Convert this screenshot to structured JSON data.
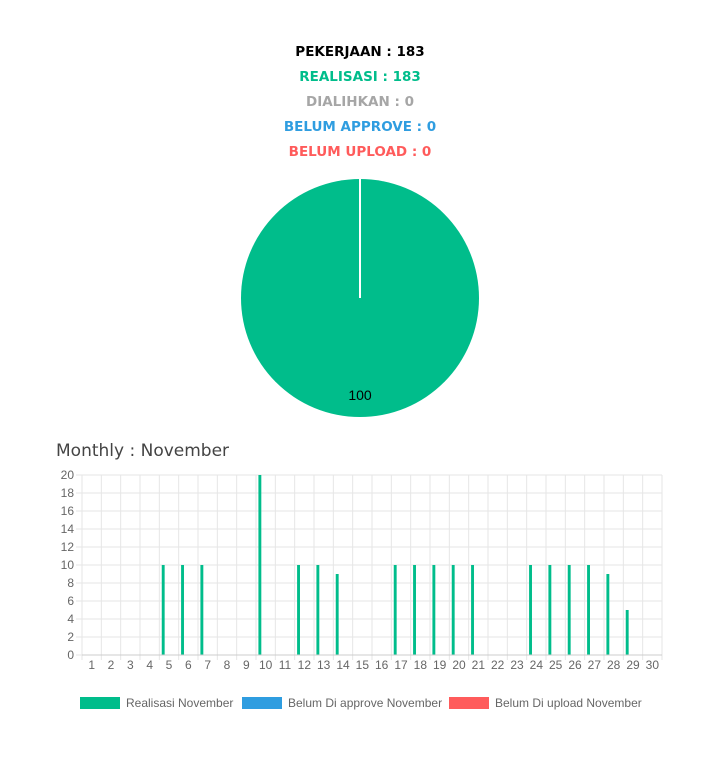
{
  "summary": {
    "pekerjaan": "PEKERJAAN : 183",
    "realisasi": "REALISASI : 183",
    "dialihkan": "DIALIHKAN : 0",
    "belum_approve": "BELUM APPROVE : 0",
    "belum_upload": "BELUM UPLOAD : 0"
  },
  "colors": {
    "pekerjaan": "#000000",
    "realisasi": "#00bd8b",
    "dialihkan": "#a6a6a6",
    "belum_approve": "#2f9de0",
    "belum_upload": "#ff5b5b",
    "grid": "#e6e6e6",
    "tick": "#666666"
  },
  "chart_data": [
    {
      "type": "pie",
      "categories": [
        "Realisasi",
        "Dialihkan",
        "Belum Approve",
        "Belum Upload"
      ],
      "values": [
        100,
        0,
        0,
        0
      ],
      "data_labels": [
        "100"
      ]
    },
    {
      "type": "bar",
      "title": "Monthly : November",
      "categories": [
        "1",
        "2",
        "3",
        "4",
        "5",
        "6",
        "7",
        "8",
        "9",
        "10",
        "11",
        "12",
        "13",
        "14",
        "15",
        "16",
        "17",
        "18",
        "19",
        "20",
        "21",
        "22",
        "23",
        "24",
        "25",
        "26",
        "27",
        "28",
        "29",
        "30"
      ],
      "series": [
        {
          "name": "Realisasi November",
          "color": "#00bd8b",
          "values": [
            0,
            0,
            0,
            0,
            10,
            10,
            10,
            0,
            0,
            20,
            0,
            10,
            10,
            9,
            0,
            0,
            10,
            10,
            10,
            10,
            10,
            0,
            0,
            10,
            10,
            10,
            10,
            9,
            5,
            0
          ]
        },
        {
          "name": "Belum Di approve November",
          "color": "#2f9de0",
          "values": [
            0,
            0,
            0,
            0,
            0,
            0,
            0,
            0,
            0,
            0,
            0,
            0,
            0,
            0,
            0,
            0,
            0,
            0,
            0,
            0,
            0,
            0,
            0,
            0,
            0,
            0,
            0,
            0,
            0,
            0
          ]
        },
        {
          "name": "Belum Di upload November",
          "color": "#ff5b5b",
          "values": [
            0,
            0,
            0,
            0,
            0,
            0,
            0,
            0,
            0,
            0,
            0,
            0,
            0,
            0,
            0,
            0,
            0,
            0,
            0,
            0,
            0,
            0,
            0,
            0,
            0,
            0,
            0,
            0,
            0,
            0
          ]
        }
      ],
      "y_ticks": [
        "0",
        "2",
        "4",
        "6",
        "8",
        "10",
        "12",
        "14",
        "16",
        "18",
        "20"
      ],
      "ylim": [
        0,
        20
      ],
      "grid": true,
      "legend": "bottom"
    }
  ]
}
